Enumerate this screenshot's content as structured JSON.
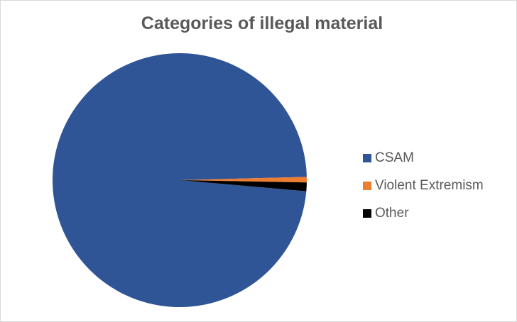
{
  "chart_data": {
    "type": "pie",
    "title": "Categories of illegal material",
    "categories": [
      "CSAM",
      "Violent Extremism",
      "Other"
    ],
    "values": [
      98.2,
      0.7,
      1.1
    ],
    "colors": [
      "#2f5597",
      "#ed7d31",
      "#000000"
    ],
    "first_slice_angle": 95,
    "legend": "right"
  }
}
